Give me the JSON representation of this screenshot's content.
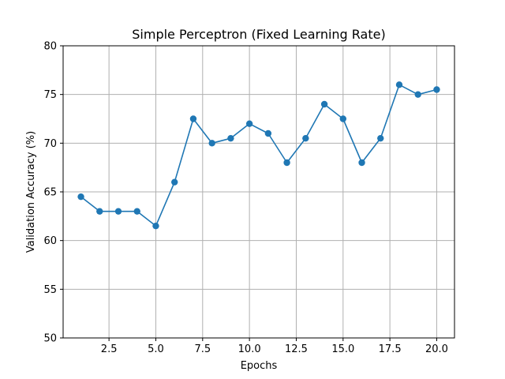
{
  "chart_data": {
    "type": "line",
    "title": "Simple Perceptron (Fixed Learning Rate)",
    "xlabel": "Epochs",
    "ylabel": "Validation Accuracy (%)",
    "xlim": [
      0.05,
      20.95
    ],
    "ylim": [
      50,
      80
    ],
    "xticks": [
      2.5,
      5.0,
      7.5,
      10.0,
      12.5,
      15.0,
      17.5,
      20.0
    ],
    "xtick_labels": [
      "2.5",
      "5.0",
      "7.5",
      "10.0",
      "12.5",
      "15.0",
      "17.5",
      "20.0"
    ],
    "yticks": [
      50,
      55,
      60,
      65,
      70,
      75,
      80
    ],
    "ytick_labels": [
      "50",
      "55",
      "60",
      "65",
      "70",
      "75",
      "80"
    ],
    "grid": true,
    "series": [
      {
        "color": "#1f77b4",
        "marker": "circle",
        "x": [
          1,
          2,
          3,
          4,
          5,
          6,
          7,
          8,
          9,
          10,
          11,
          12,
          13,
          14,
          15,
          16,
          17,
          18,
          19,
          20
        ],
        "y": [
          64.5,
          63.0,
          63.0,
          63.0,
          61.5,
          66.0,
          72.5,
          70.0,
          70.5,
          72.0,
          71.0,
          68.0,
          70.5,
          74.0,
          72.5,
          68.0,
          70.5,
          76.0,
          75.0,
          75.5
        ]
      }
    ]
  }
}
